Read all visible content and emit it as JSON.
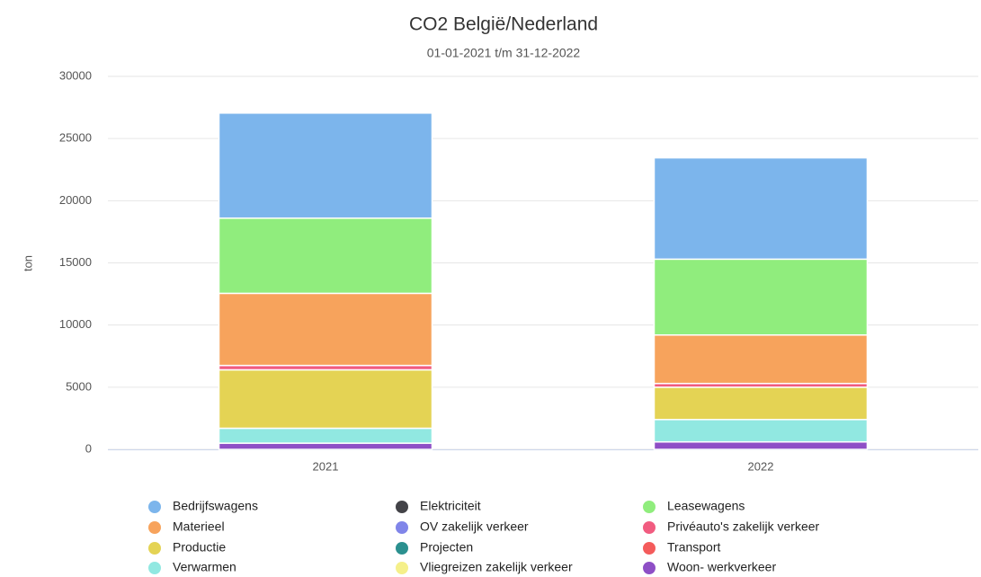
{
  "chart_data": {
    "type": "stacked_bar",
    "title": "CO2 België/Nederland",
    "subtitle": "01-01-2021 t/m 31-12-2022",
    "y_label": "ton",
    "categories": [
      "2021",
      "2022"
    ],
    "ylim": [
      0,
      30000
    ],
    "yticks": [
      0,
      5000,
      10000,
      15000,
      20000,
      25000,
      30000
    ],
    "grid": true,
    "series": [
      {
        "name": "Bedrijfswagens",
        "color": "#7cb5ec",
        "values": [
          8450,
          8150
        ]
      },
      {
        "name": "Elektriciteit",
        "color": "#434348",
        "values": [
          0,
          0
        ]
      },
      {
        "name": "Leasewagens",
        "color": "#90ed7d",
        "values": [
          6050,
          6100
        ]
      },
      {
        "name": "Materieel",
        "color": "#f7a35c",
        "values": [
          5800,
          3900
        ]
      },
      {
        "name": "OV zakelijk verkeer",
        "color": "#8085e9",
        "values": [
          0,
          0
        ]
      },
      {
        "name": "Privéauto's zakelijk verkeer",
        "color": "#f15c80",
        "values": [
          350,
          300
        ]
      },
      {
        "name": "Productie",
        "color": "#e4d354",
        "values": [
          4700,
          2600
        ]
      },
      {
        "name": "Projecten",
        "color": "#2b908f",
        "values": [
          0,
          0
        ]
      },
      {
        "name": "Transport",
        "color": "#f45b5b",
        "values": [
          0,
          0
        ]
      },
      {
        "name": "Verwarmen",
        "color": "#91e8e1",
        "values": [
          1200,
          1800
        ]
      },
      {
        "name": "Vliegreizen zakelijk verkeer",
        "color": "#f5f08a",
        "values": [
          0,
          0
        ]
      },
      {
        "name": "Woon- werkverkeer",
        "color": "#8e4fc6",
        "values": [
          500,
          600
        ]
      }
    ]
  }
}
